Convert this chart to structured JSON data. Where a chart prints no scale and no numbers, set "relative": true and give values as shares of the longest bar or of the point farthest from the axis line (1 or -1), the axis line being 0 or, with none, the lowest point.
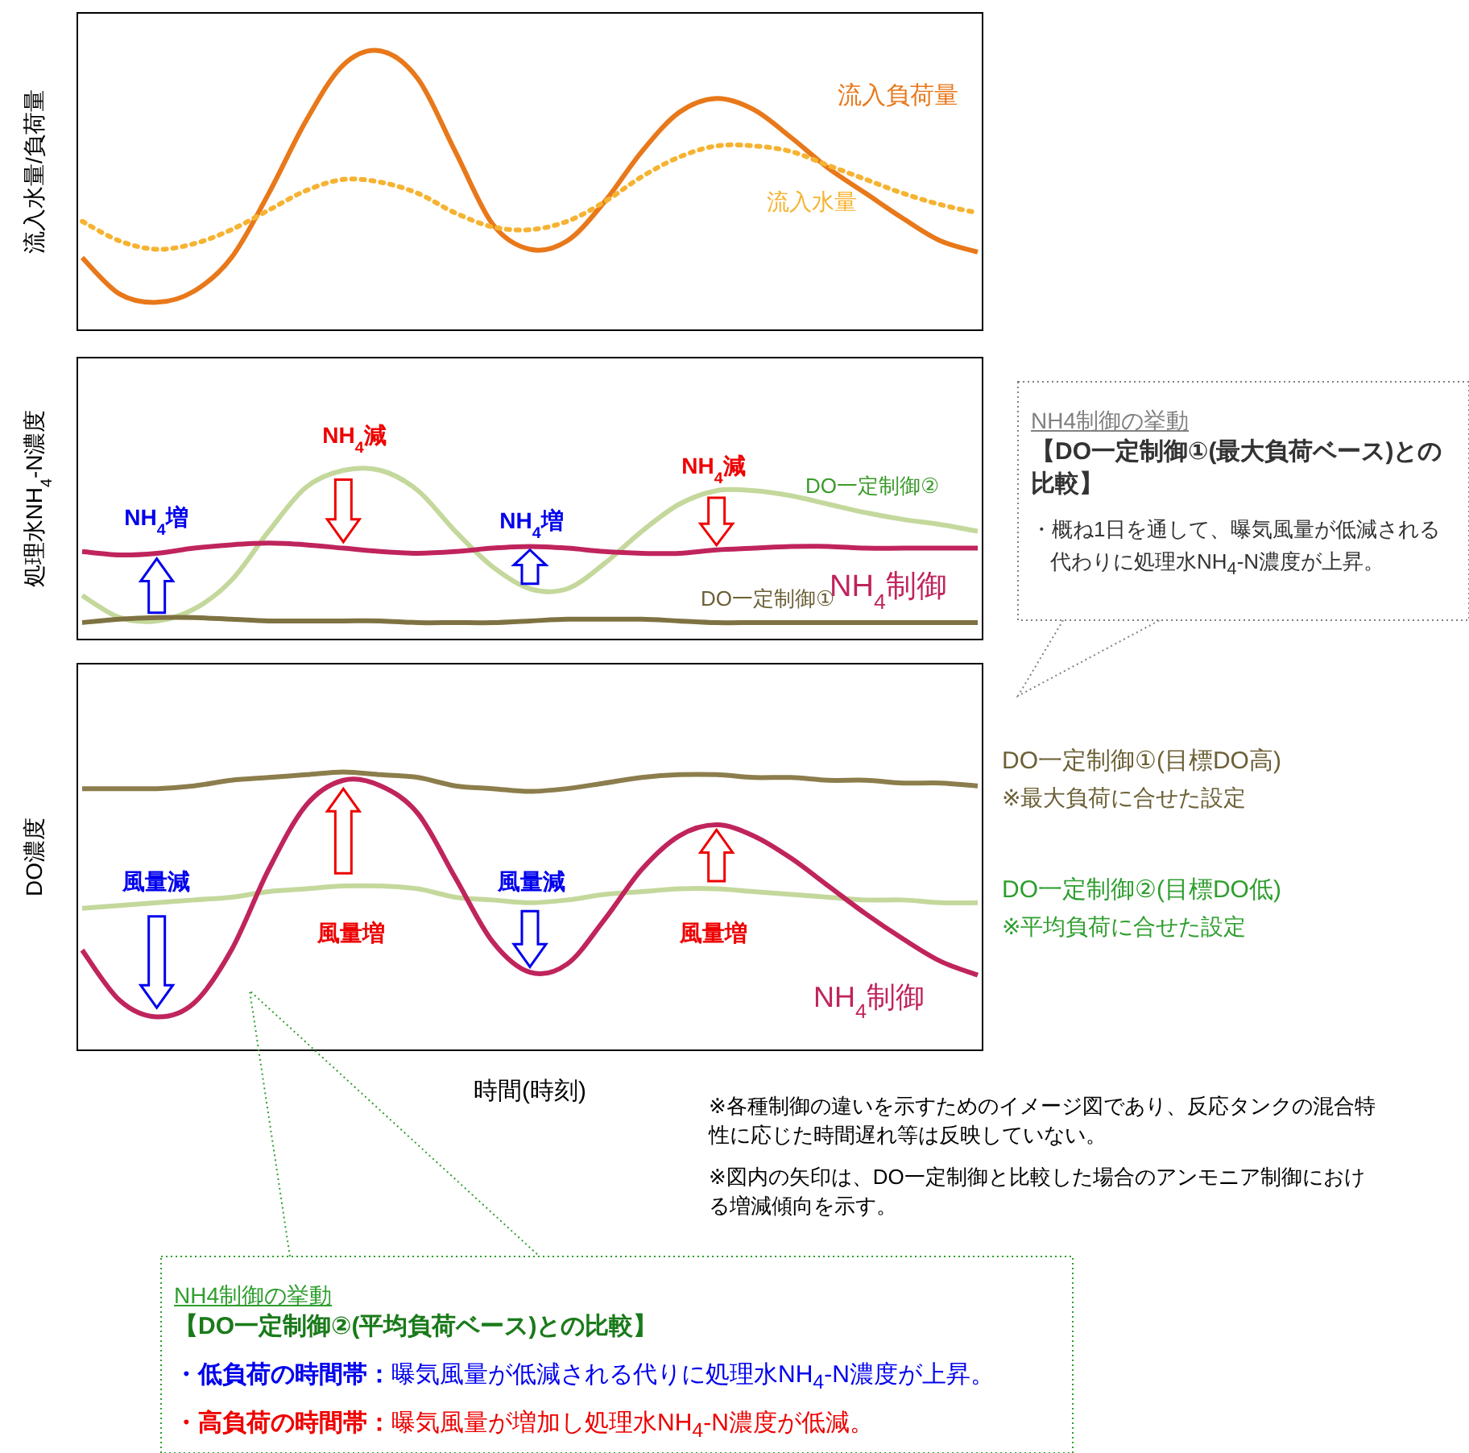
{
  "chart_data": [
    {
      "type": "line",
      "relative": true,
      "ylabel": "流入水量/負荷量",
      "categories": [
        null,
        null,
        null,
        null,
        null,
        null,
        null,
        null,
        null,
        null,
        null,
        null,
        null,
        null,
        null,
        null,
        null,
        null,
        null,
        null,
        null,
        null,
        null,
        null,
        null
      ],
      "series": [
        {
          "name": "流入負荷量",
          "color": "#e8781a",
          "line_style": "solid",
          "values": [
            0.26,
            0.13,
            0.1,
            0.14,
            0.26,
            0.49,
            0.75,
            0.95,
            1.0,
            0.9,
            0.64,
            0.38,
            0.29,
            0.32,
            0.46,
            0.64,
            0.78,
            0.83,
            0.79,
            0.69,
            0.58,
            0.49,
            0.4,
            0.32,
            0.28
          ]
        },
        {
          "name": "流入水量",
          "color": "#f6b332",
          "line_style": "dotted",
          "values": [
            0.39,
            0.32,
            0.29,
            0.31,
            0.36,
            0.43,
            0.5,
            0.54,
            0.53,
            0.49,
            0.42,
            0.37,
            0.36,
            0.39,
            0.46,
            0.55,
            0.62,
            0.66,
            0.66,
            0.64,
            0.59,
            0.54,
            0.49,
            0.45,
            0.42
          ]
        }
      ]
    },
    {
      "type": "line",
      "relative": true,
      "ylabel": "処理水NH$_{4}$-N濃度",
      "categories": [
        null,
        null,
        null,
        null,
        null,
        null,
        null,
        null,
        null,
        null,
        null,
        null,
        null,
        null,
        null,
        null,
        null,
        null,
        null,
        null,
        null,
        null,
        null,
        null,
        null
      ],
      "series": [
        {
          "name": "DO一定制御②",
          "color": "#c4d89c",
          "line_style": "solid",
          "values": [
            0.26,
            0.13,
            0.11,
            0.18,
            0.35,
            0.64,
            0.9,
            1.0,
            1.0,
            0.88,
            0.64,
            0.43,
            0.3,
            0.3,
            0.45,
            0.64,
            0.8,
            0.88,
            0.88,
            0.85,
            0.8,
            0.75,
            0.71,
            0.68,
            0.64
          ]
        },
        {
          "name": "NH$_{4}$制御",
          "color": "#c0245c",
          "line_style": "solid",
          "values": [
            0.52,
            0.5,
            0.51,
            0.54,
            0.56,
            0.57,
            0.56,
            0.54,
            0.52,
            0.51,
            0.52,
            0.54,
            0.55,
            0.54,
            0.52,
            0.51,
            0.51,
            0.53,
            0.54,
            0.55,
            0.55,
            0.54,
            0.54,
            0.54,
            0.54
          ]
        },
        {
          "name": "DO一定制御①",
          "color": "#7f7242",
          "line_style": "solid",
          "values": [
            0.1,
            0.12,
            0.13,
            0.13,
            0.12,
            0.11,
            0.11,
            0.11,
            0.11,
            0.1,
            0.1,
            0.1,
            0.11,
            0.12,
            0.12,
            0.12,
            0.11,
            0.1,
            0.1,
            0.1,
            0.1,
            0.1,
            0.1,
            0.1,
            0.1
          ]
        }
      ],
      "annotations": [
        "NH$_{4}$増",
        "NH$_{4}$減",
        "NH$_{4}$増",
        "NH$_{4}$減"
      ]
    },
    {
      "type": "line",
      "relative": true,
      "ylabel": "DO濃度",
      "xlabel": "時間(時刻)",
      "categories": [
        null,
        null,
        null,
        null,
        null,
        null,
        null,
        null,
        null,
        null,
        null,
        null,
        null,
        null,
        null,
        null,
        null,
        null,
        null,
        null,
        null,
        null,
        null,
        null,
        null
      ],
      "series": [
        {
          "name": "DO一定制御①(目標DO高)",
          "color": "#8c7d4c",
          "line_style": "solid",
          "values": [
            0.94,
            0.94,
            0.94,
            0.95,
            0.97,
            0.98,
            0.99,
            1.0,
            0.99,
            0.98,
            0.95,
            0.94,
            0.93,
            0.94,
            0.96,
            0.98,
            0.99,
            0.99,
            0.98,
            0.98,
            0.97,
            0.97,
            0.96,
            0.96,
            0.95
          ]
        },
        {
          "name": "DO一定制御②(目標DO低)",
          "color": "#c4d89c",
          "line_style": "solid",
          "values": [
            0.51,
            0.52,
            0.53,
            0.54,
            0.55,
            0.57,
            0.58,
            0.59,
            0.59,
            0.58,
            0.55,
            0.54,
            0.53,
            0.54,
            0.56,
            0.57,
            0.58,
            0.58,
            0.57,
            0.56,
            0.55,
            0.54,
            0.54,
            0.53,
            0.53
          ]
        },
        {
          "name": "NH$_{4}$制御",
          "color": "#c0245c",
          "line_style": "solid",
          "values": [
            0.36,
            0.18,
            0.12,
            0.17,
            0.36,
            0.65,
            0.88,
            0.97,
            0.95,
            0.85,
            0.62,
            0.39,
            0.28,
            0.31,
            0.47,
            0.65,
            0.77,
            0.81,
            0.77,
            0.69,
            0.59,
            0.49,
            0.4,
            0.32,
            0.27
          ]
        }
      ],
      "annotations": [
        "風量減",
        "風量増",
        "風量減",
        "風量増",
        "※最大負荷に合せた設定",
        "※平均負荷に合せた設定",
        "※各種制御の違いを示すためのイメージ図であり、反応タンクの混合特性に応じた時間遅れ等は反映していない。",
        "※図内の矢印は、DO一定制御と比較した場合のアンモニア制御における増減傾向を示す。"
      ]
    },
    {
      "type": "other",
      "title": "NH4制御の挙動",
      "annotations": [
        "【DO一定制御①(最大負荷ベース)との比較】",
        "・概ね1日を通して、曝気風量が低減される代わりに処理水NH$_{4}$-N濃度が上昇。"
      ]
    },
    {
      "type": "other",
      "title": "NH4制御の挙動",
      "annotations": [
        "【DO一定制御②(平均負荷ベース)との比較】",
        "・低負荷の時間帯：",
        "曝気風量が低減される代りに処理水NH$_{4}$-N濃度が上昇。",
        "・高負荷の時間帯：",
        "曝気風量が増加し処理水NH$_{4}$-N濃度が低減。"
      ]
    }
  ]
}
